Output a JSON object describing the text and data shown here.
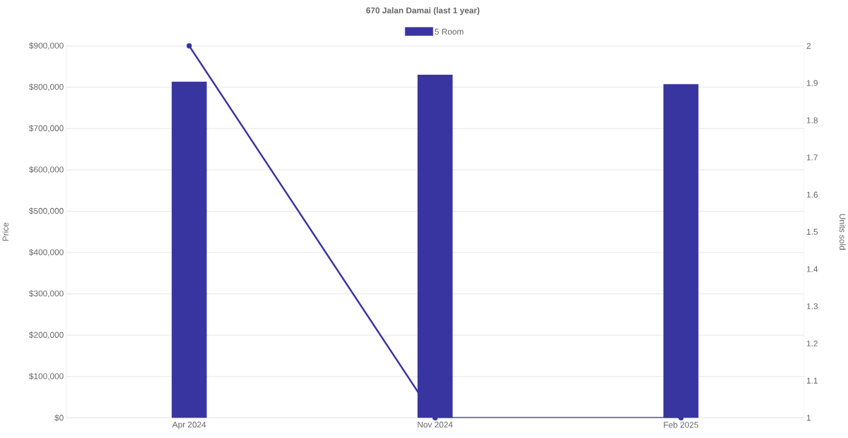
{
  "chart_data": {
    "type": "bar",
    "title": "670 Jalan Damai (last 1 year)",
    "categories": [
      "Apr 2024",
      "Nov 2024",
      "Feb 2025"
    ],
    "ylabel": "Price",
    "y2label": "Units sold",
    "series": [
      {
        "name": "5 Room",
        "color": "#3935a0",
        "values": [
          813000,
          830000,
          807000
        ]
      },
      {
        "type": "line",
        "axis": "y2",
        "color": "#3935a0",
        "values": [
          2,
          1,
          1
        ]
      }
    ],
    "ylim": [
      0,
      900000
    ],
    "yticks": [
      {
        "value": 0,
        "label": "$0"
      },
      {
        "value": 100000,
        "label": "$100,000"
      },
      {
        "value": 200000,
        "label": "$200,000"
      },
      {
        "value": 300000,
        "label": "$300,000"
      },
      {
        "value": 400000,
        "label": "$400,000"
      },
      {
        "value": 500000,
        "label": "$500,000"
      },
      {
        "value": 600000,
        "label": "$600,000"
      },
      {
        "value": 700000,
        "label": "$700,000"
      },
      {
        "value": 800000,
        "label": "$800,000"
      },
      {
        "value": 900000,
        "label": "$900,000"
      }
    ],
    "y2lim": [
      1,
      2
    ],
    "y2ticks": [
      1,
      1.1,
      1.2,
      1.3,
      1.4,
      1.5,
      1.6,
      1.7,
      1.8,
      1.9,
      2
    ],
    "grid": "y",
    "legend": "top",
    "marker": "circle"
  }
}
